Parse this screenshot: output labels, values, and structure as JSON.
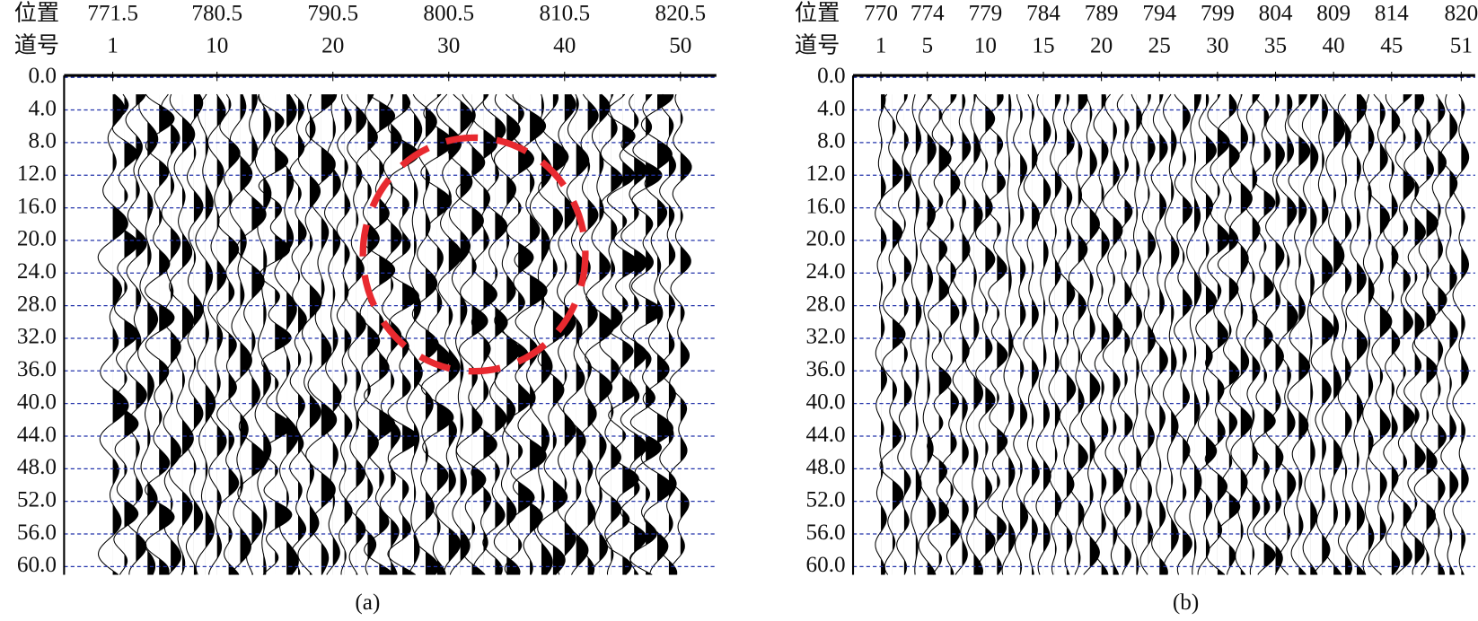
{
  "chart_data": [
    {
      "type": "wiggle",
      "caption": "(a)",
      "x_label": "位置",
      "x2_label": "道号",
      "xlim": [
        767.3,
        823.6
      ],
      "xticks": [
        771.5,
        780.5,
        790.5,
        800.5,
        810.5,
        820.5
      ],
      "x2lim": [
        -3.2,
        53.1
      ],
      "x2ticks": [
        1,
        10,
        20,
        30,
        40,
        50
      ],
      "ylim": [
        0,
        61
      ],
      "yticks": [
        {
          "value": 0,
          "label": "0.0"
        },
        {
          "value": 4,
          "label": "4.0"
        },
        {
          "value": 8,
          "label": "8.0"
        },
        {
          "value": 12,
          "label": "12.0"
        },
        {
          "value": 16,
          "label": "16.0"
        },
        {
          "value": 20,
          "label": "20.0"
        },
        {
          "value": 24,
          "label": "24.0"
        },
        {
          "value": 28,
          "label": "28.0"
        },
        {
          "value": 32,
          "label": "32.0"
        },
        {
          "value": 36,
          "label": "36.0"
        },
        {
          "value": 40,
          "label": "40.0"
        },
        {
          "value": 44,
          "label": "44.0"
        },
        {
          "value": 48,
          "label": "48.0"
        },
        {
          "value": 52,
          "label": "52.0"
        },
        {
          "value": 56,
          "label": "56.0"
        },
        {
          "value": 60,
          "label": "60.0"
        }
      ],
      "grid": true
    },
    {
      "type": "wiggle",
      "caption": "(b)",
      "x_label": "位置",
      "x2_label": "道号",
      "xlim": [
        767.6,
        821.2
      ],
      "xticks": [
        770,
        774,
        779,
        784,
        789,
        794,
        799,
        804,
        809,
        814,
        820
      ],
      "x2lim": [
        -1.4,
        52.2
      ],
      "x2ticks": [
        1,
        5,
        10,
        15,
        20,
        25,
        30,
        35,
        40,
        45,
        51
      ],
      "ylim": [
        0,
        61
      ],
      "yticks": [
        {
          "value": 0,
          "label": "0.0"
        },
        {
          "value": 4,
          "label": "4.0"
        },
        {
          "value": 8,
          "label": "8.0"
        },
        {
          "value": 12,
          "label": "12.0"
        },
        {
          "value": 16,
          "label": "16.0"
        },
        {
          "value": 20,
          "label": "20.0"
        },
        {
          "value": 24,
          "label": "24.0"
        },
        {
          "value": 28,
          "label": "28.0"
        },
        {
          "value": 32,
          "label": "32.0"
        },
        {
          "value": 36,
          "label": "36.0"
        },
        {
          "value": 40,
          "label": "40.0"
        },
        {
          "value": 44,
          "label": "44.0"
        },
        {
          "value": 48,
          "label": "48.0"
        },
        {
          "value": 52,
          "label": "52.0"
        },
        {
          "value": 56,
          "label": "56.0"
        },
        {
          "value": 60,
          "label": "60.0"
        }
      ],
      "grid": true
    }
  ]
}
